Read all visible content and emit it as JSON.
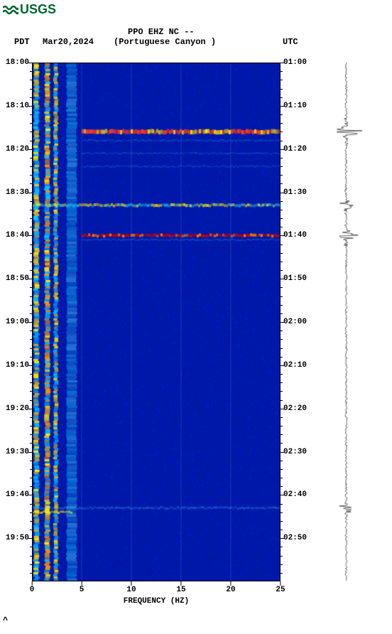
{
  "logo": {
    "text": "USGS",
    "color": "#006633"
  },
  "header": {
    "station_line": "PPO EHZ NC --",
    "location_line": "(Portuguese Canyon )",
    "left_tz_label": "PDT",
    "date": "Mar20,2024",
    "right_tz_label": "UTC"
  },
  "spectrogram": {
    "type": "spectrogram",
    "background_color": "#0018a8",
    "gridline_color": "#5a6fe0",
    "x": {
      "label": "FREQUENCY (HZ)",
      "min": 0,
      "max": 25,
      "ticks": [
        0,
        5,
        10,
        15,
        20,
        25
      ],
      "grid_at": [
        5,
        10,
        15,
        20
      ]
    },
    "time_left": {
      "tz": "PDT",
      "major": [
        "18:00",
        "18:10",
        "18:20",
        "18:30",
        "18:40",
        "18:50",
        "19:00",
        "19:10",
        "19:20",
        "19:30",
        "19:40",
        "19:50"
      ],
      "minor_every_min": 2,
      "span_minutes": 120
    },
    "time_right": {
      "tz": "UTC",
      "major": [
        "01:00",
        "01:10",
        "01:20",
        "01:30",
        "01:40",
        "01:50",
        "02:00",
        "02:10",
        "02:20",
        "02:30",
        "02:40",
        "02:50"
      ]
    },
    "vertical_bands": [
      {
        "hz_from": 0.2,
        "hz_to": 0.7,
        "gradient": [
          "#08c6ff",
          "#ffe600"
        ],
        "amp": 1.0
      },
      {
        "hz_from": 1.3,
        "hz_to": 1.8,
        "gradient": [
          "#08c6ff",
          "#ffe600",
          "#ff9900"
        ],
        "amp": 1.0
      },
      {
        "hz_from": 2.2,
        "hz_to": 2.6,
        "gradient": [
          "#08c6ff",
          "#ffe600"
        ],
        "amp": 0.9
      },
      {
        "hz_from": 3.5,
        "hz_to": 4.5,
        "gradient": [
          "#08c6ff",
          "#39d5ff"
        ],
        "amp": 0.5
      }
    ],
    "events": [
      {
        "t_min": 16,
        "hz_from": 5,
        "hz_to": 25,
        "color": "#ff3b1f",
        "amp": 1.0,
        "thickness": 6,
        "mix": "#ffe600"
      },
      {
        "t_min": 18,
        "hz_from": 5,
        "hz_to": 25,
        "color": "#08c6ff",
        "amp": 0.3,
        "thickness": 2
      },
      {
        "t_min": 21,
        "hz_from": 5,
        "hz_to": 25,
        "color": "#08c6ff",
        "amp": 0.25,
        "thickness": 2
      },
      {
        "t_min": 24,
        "hz_from": 5,
        "hz_to": 25,
        "color": "#08c6ff",
        "amp": 0.25,
        "thickness": 2
      },
      {
        "t_min": 33,
        "hz_from": 0,
        "hz_to": 25,
        "color": "#ffe600",
        "amp": 0.8,
        "thickness": 4,
        "mix": "#08c6ff"
      },
      {
        "t_min": 40,
        "hz_from": 5,
        "hz_to": 25,
        "color": "#cc0000",
        "amp": 1.0,
        "thickness": 4,
        "mix": "#ff7a00"
      },
      {
        "t_min": 41,
        "hz_from": 5,
        "hz_to": 25,
        "color": "#08c6ff",
        "amp": 0.3,
        "thickness": 2
      },
      {
        "t_min": 103,
        "hz_from": 0,
        "hz_to": 25,
        "color": "#39d5ff",
        "amp": 0.3,
        "thickness": 3
      },
      {
        "t_min": 104,
        "hz_from": 0,
        "hz_to": 4,
        "color": "#ffe600",
        "amp": 0.8,
        "thickness": 3
      }
    ],
    "noise_amp": 0.14
  },
  "waveform": {
    "baseline_color": "#000000",
    "spikes": [
      {
        "t_min": 16,
        "amp": 1.0
      },
      {
        "t_min": 33,
        "amp": 0.55
      },
      {
        "t_min": 40,
        "amp": 0.65
      },
      {
        "t_min": 103,
        "amp": 0.5
      }
    ],
    "noise_amp": 0.05,
    "span_minutes": 120
  },
  "colors": {
    "text": "#000000",
    "page_bg": "#ffffff"
  },
  "fonts": {
    "mono": "Courier New",
    "label_size_pt": 11,
    "title_size_pt": 12
  }
}
